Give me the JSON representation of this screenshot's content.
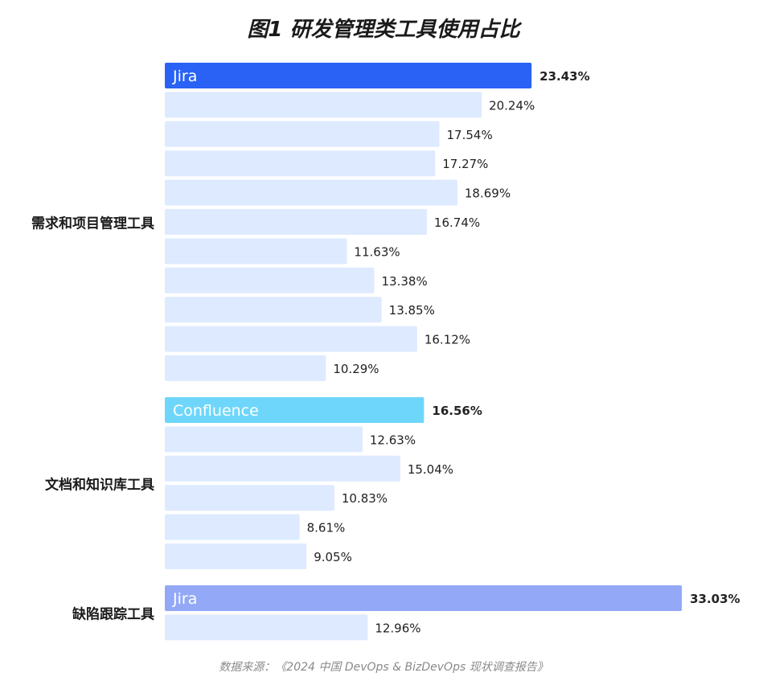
{
  "title": "图1 研发管理类工具使用占比",
  "source": "数据来源：《2024 中国 DevOps & BizDevOps 现状调查报告》",
  "colors": {
    "requirements_highlight": "#2962f5",
    "docs_highlight": "#6ed6fb",
    "defect_highlight": "#93a9f7",
    "bar_default": "#ddeaff",
    "label_highlight_text": "#ffffff"
  },
  "chart_data": {
    "type": "bar",
    "orientation": "horizontal",
    "title": "图1 研发管理类工具使用占比",
    "xlim": [
      0,
      35
    ],
    "groups": [
      {
        "name": "需求和项目管理工具",
        "highlight_color": "#2962f5",
        "bars": [
          {
            "label": "Jira",
            "value": 23.43,
            "value_text": "23.43%",
            "highlight": true
          },
          {
            "label": "",
            "value": 20.24,
            "value_text": "20.24%"
          },
          {
            "label": "",
            "value": 17.54,
            "value_text": "17.54%"
          },
          {
            "label": "",
            "value": 17.27,
            "value_text": "17.27%"
          },
          {
            "label": "",
            "value": 18.69,
            "value_text": "18.69%"
          },
          {
            "label": "",
            "value": 16.74,
            "value_text": "16.74%"
          },
          {
            "label": "",
            "value": 11.63,
            "value_text": "11.63%"
          },
          {
            "label": "",
            "value": 13.38,
            "value_text": "13.38%"
          },
          {
            "label": "",
            "value": 13.85,
            "value_text": "13.85%"
          },
          {
            "label": "",
            "value": 16.12,
            "value_text": "16.12%"
          },
          {
            "label": "",
            "value": 10.29,
            "value_text": "10.29%"
          }
        ]
      },
      {
        "name": "文档和知识库工具",
        "highlight_color": "#6ed6fb",
        "bars": [
          {
            "label": "Confluence",
            "value": 16.56,
            "value_text": "16.56%",
            "highlight": true
          },
          {
            "label": "",
            "value": 12.63,
            "value_text": "12.63%"
          },
          {
            "label": "",
            "value": 15.04,
            "value_text": "15.04%"
          },
          {
            "label": "",
            "value": 10.83,
            "value_text": "10.83%"
          },
          {
            "label": "",
            "value": 8.61,
            "value_text": "8.61%"
          },
          {
            "label": "",
            "value": 9.05,
            "value_text": "9.05%"
          }
        ]
      },
      {
        "name": "缺陷跟踪工具",
        "highlight_color": "#93a9f7",
        "bars": [
          {
            "label": "Jira",
            "value": 33.03,
            "value_text": "33.03%",
            "highlight": true
          },
          {
            "label": "",
            "value": 12.96,
            "value_text": "12.96%"
          }
        ]
      }
    ]
  }
}
